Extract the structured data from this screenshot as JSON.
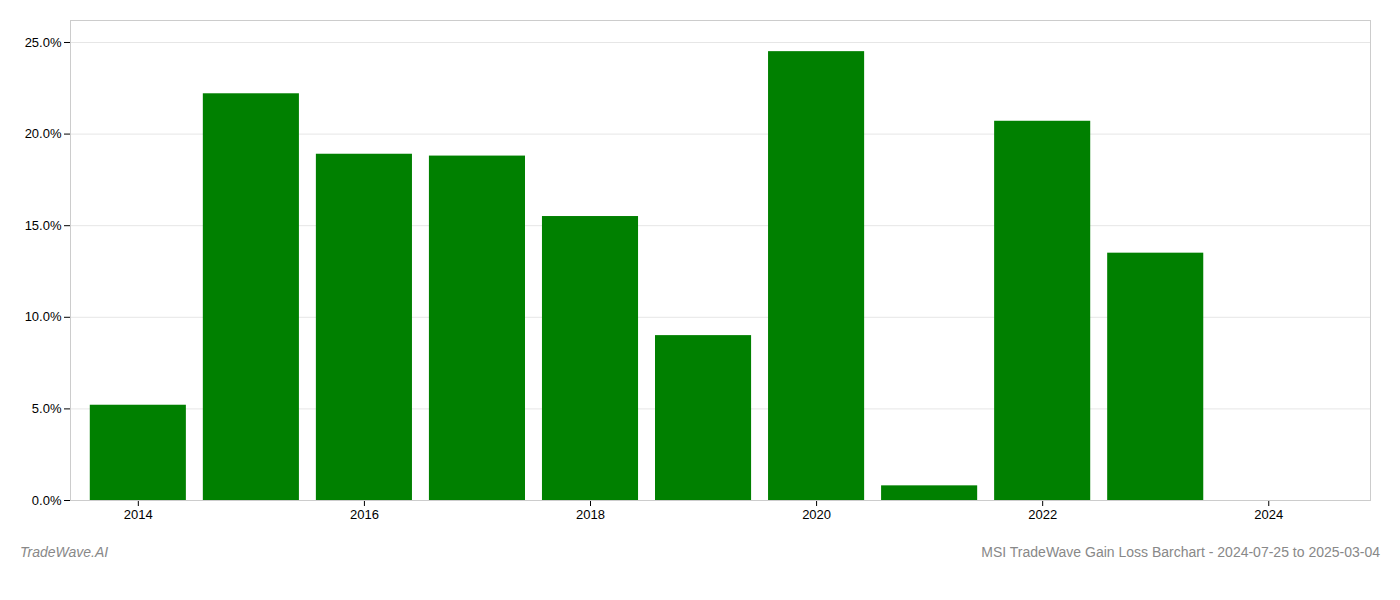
{
  "chart_data": {
    "type": "bar",
    "x": [
      2014,
      2015,
      2016,
      2017,
      2018,
      2019,
      2020,
      2021,
      2022,
      2023,
      2024
    ],
    "values": [
      0.052,
      0.222,
      0.189,
      0.188,
      0.155,
      0.09,
      0.245,
      0.008,
      0.207,
      0.135,
      0.0
    ],
    "color": "#008000",
    "xlim": [
      2013.4,
      2024.9
    ],
    "xticks": [
      2014,
      2016,
      2018,
      2020,
      2022,
      2024
    ],
    "ylim": [
      0,
      0.262
    ],
    "yticks": [
      {
        "value": 0.0,
        "label": "0.0%"
      },
      {
        "value": 0.05,
        "label": "5.0%"
      },
      {
        "value": 0.1,
        "label": "10.0%"
      },
      {
        "value": 0.15,
        "label": "15.0%"
      },
      {
        "value": 0.2,
        "label": "20.0%"
      },
      {
        "value": 0.25,
        "label": "25.0%"
      }
    ],
    "grid": true,
    "annotations": [
      "TradeWave.AI",
      "MSI TradeWave Gain Loss Barchart - 2024-07-25 to 2025-03-04"
    ]
  }
}
